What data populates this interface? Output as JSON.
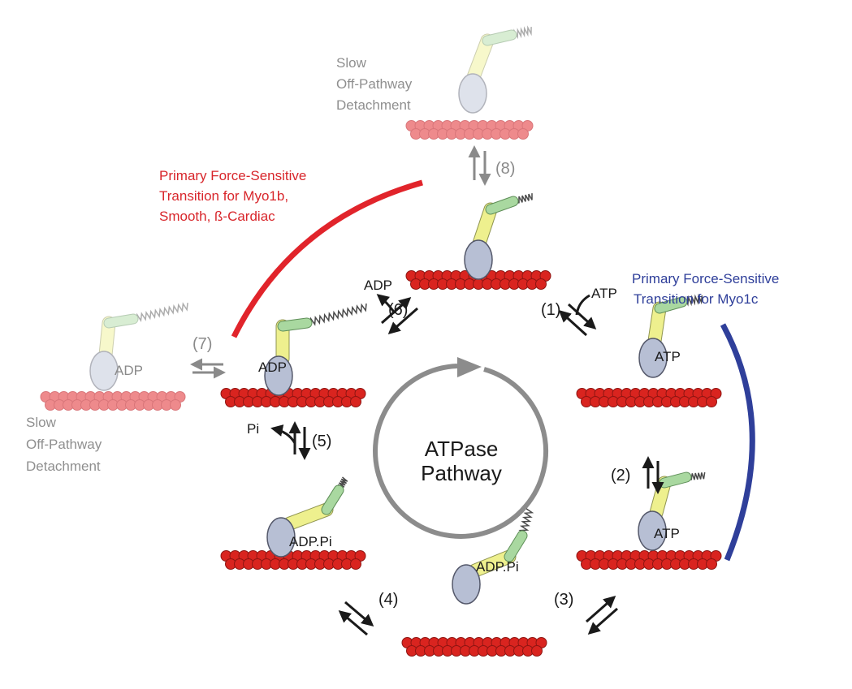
{
  "center": {
    "line1": "ATPase",
    "line2": "Pathway"
  },
  "steps": {
    "s1": "(1)",
    "s2": "(2)",
    "s3": "(3)",
    "s4": "(4)",
    "s5": "(5)",
    "s6": "(6)",
    "s7": "(7)",
    "s8": "(8)"
  },
  "ligands": {
    "atp_in": "ATP",
    "adp_out": "ADP",
    "pi_out": "Pi"
  },
  "states": {
    "top_off": "",
    "rigor": "",
    "atp_bound": "ATP",
    "atp_detached": "ATP",
    "adp_pi_bottom": "ADP.Pi",
    "adp_pi_left": "ADP.Pi",
    "adp_bound": "ADP",
    "adp_off": "ADP"
  },
  "notes": {
    "off_top": [
      "Slow",
      "Off-Pathway",
      "Detachment"
    ],
    "off_left": [
      "Slow",
      "Off-Pathway",
      "Detachment"
    ],
    "red": [
      "Primary Force-Sensitive",
      "Transition for Myo1b,",
      "Smooth, ß-Cardiac"
    ],
    "blue": [
      "Primary Force-Sensitive",
      "Transition for Myo1c"
    ]
  },
  "colors": {
    "actin": "#d9241f",
    "actin_faded": "#ee8a8c",
    "head": "#b7bfd4",
    "lever": "#eef08e",
    "converter": "#a9d8a0",
    "red_arc": "#e1242b",
    "blue_arc": "#2f3f9a",
    "cycle": "#8c8c8c"
  }
}
